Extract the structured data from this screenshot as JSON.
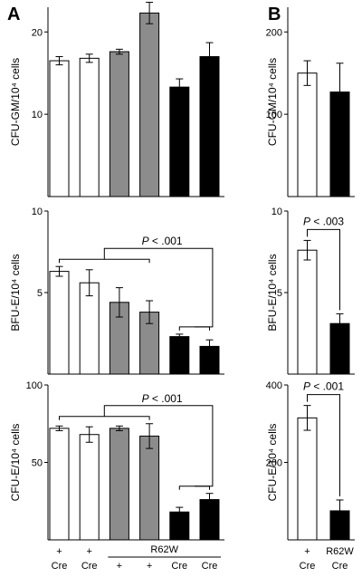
{
  "panels": [
    "A",
    "B"
  ],
  "colors": {
    "white": "#ffffff",
    "gray": "#8c8c8c",
    "black": "#000000",
    "outline": "#000000"
  },
  "chart_data": [
    {
      "id": "A-gm",
      "panel": "A",
      "type": "bar",
      "ylabel": "CFU-GM/10⁴ cells",
      "ylim": [
        0,
        23
      ],
      "ticks": [
        10,
        20
      ],
      "tick_labels": [
        "10",
        "20"
      ],
      "values": [
        16.5,
        16.8,
        17.6,
        22.3,
        13.3,
        17.0
      ],
      "errors": [
        0.5,
        0.5,
        0.3,
        1.3,
        1.0,
        1.7
      ],
      "fills": [
        "white",
        "white",
        "gray",
        "gray",
        "black",
        "black"
      ],
      "brackets": []
    },
    {
      "id": "A-bfu",
      "panel": "A",
      "type": "bar",
      "ylabel": "BFU-E/10⁴ cells",
      "ylim": [
        0,
        10
      ],
      "ticks": [
        5,
        10
      ],
      "tick_labels": [
        "5",
        "10"
      ],
      "values": [
        6.3,
        5.6,
        4.4,
        3.8,
        2.3,
        1.7
      ],
      "errors": [
        0.3,
        0.8,
        0.9,
        0.7,
        0.15,
        0.4
      ],
      "fills": [
        "white",
        "white",
        "gray",
        "gray",
        "black",
        "black"
      ],
      "brackets": [
        {
          "text_italic": "P",
          "text": " < .001",
          "left": [
            0,
            3
          ],
          "right": [
            4,
            5
          ]
        }
      ]
    },
    {
      "id": "A-cfue",
      "panel": "A",
      "type": "bar",
      "ylabel": "CFU-E/10⁴ cells",
      "ylim": [
        0,
        100
      ],
      "ticks": [
        50,
        100
      ],
      "tick_labels": [
        "50",
        "100"
      ],
      "values": [
        72,
        68,
        72,
        67,
        18,
        26
      ],
      "errors": [
        1.5,
        5,
        1.5,
        8,
        3,
        4
      ],
      "fills": [
        "white",
        "white",
        "gray",
        "gray",
        "black",
        "black"
      ],
      "brackets": [
        {
          "text_italic": "P",
          "text": " < .001",
          "left": [
            0,
            3
          ],
          "right": [
            4,
            5
          ]
        }
      ]
    },
    {
      "id": "B-gm",
      "panel": "B",
      "type": "bar",
      "ylabel": "CFU-GM/10⁴ cells",
      "ylim": [
        0,
        230
      ],
      "ticks": [
        100,
        200
      ],
      "tick_labels": [
        "100",
        "200"
      ],
      "values": [
        150,
        127
      ],
      "errors": [
        15,
        35
      ],
      "fills": [
        "white",
        "black"
      ],
      "brackets": []
    },
    {
      "id": "B-bfu",
      "panel": "B",
      "type": "bar",
      "ylabel": "BFU-E/10⁴ cells",
      "ylim": [
        0,
        10
      ],
      "ticks": [
        5,
        10
      ],
      "tick_labels": [
        "5",
        "10"
      ],
      "values": [
        7.6,
        3.1
      ],
      "errors": [
        0.6,
        0.6
      ],
      "fills": [
        "white",
        "black"
      ],
      "brackets": [
        {
          "text_italic": "P",
          "text": " < .003",
          "left": [
            0,
            0
          ],
          "right": [
            1,
            1
          ]
        }
      ]
    },
    {
      "id": "B-cfue",
      "panel": "B",
      "type": "bar",
      "ylabel": "CFU-E/10⁴ cells",
      "ylim": [
        0,
        400
      ],
      "ticks": [
        200,
        400
      ],
      "tick_labels": [
        "200",
        "400"
      ],
      "values": [
        315,
        75
      ],
      "errors": [
        32,
        28
      ],
      "fills": [
        "white",
        "black"
      ],
      "brackets": [
        {
          "text_italic": "P",
          "text": " < .001",
          "left": [
            0,
            0
          ],
          "right": [
            1,
            1
          ]
        }
      ]
    }
  ],
  "x_labels": {
    "A": {
      "row1": [
        "+",
        "+",
        "",
        "",
        "",
        ""
      ],
      "row2": [
        "Cre",
        "Cre",
        "+",
        "+",
        "Cre",
        "Cre"
      ],
      "group": "R62W"
    },
    "B": {
      "row1": [
        "+",
        "R62W"
      ],
      "row2": [
        "Cre",
        "Cre"
      ]
    }
  }
}
